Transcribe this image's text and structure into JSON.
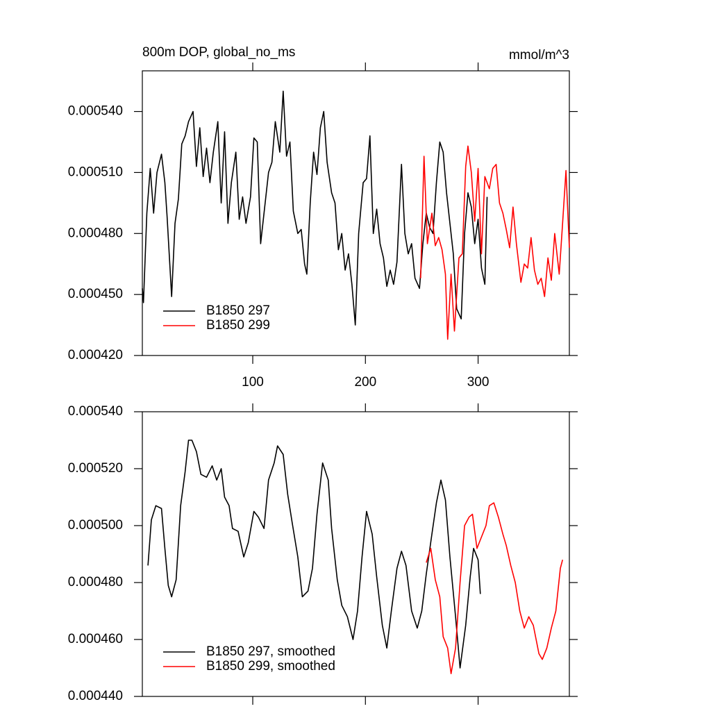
{
  "chart_data": [
    {
      "type": "line",
      "title": "800m DOP, global_no_ms",
      "units_label": "mmol/m^3",
      "xlim": [
        2,
        381
      ],
      "xticks": [
        100,
        200,
        300
      ],
      "xtick_labels": true,
      "ylim": [
        0.00042,
        0.00056
      ],
      "yticks": [
        {
          "value": 0.00042,
          "label": "0.000420"
        },
        {
          "value": 0.00045,
          "label": "0.000450"
        },
        {
          "value": 0.00048,
          "label": "0.000480"
        },
        {
          "value": 0.00051,
          "label": "0.000510"
        },
        {
          "value": 0.00054,
          "label": "0.000540"
        }
      ],
      "legend": "lower left",
      "series": [
        {
          "name": "B1850 297",
          "color": "#000000",
          "x": [
            2,
            3,
            6,
            9,
            12,
            15,
            19,
            22,
            24,
            28,
            31,
            34,
            37,
            40,
            43,
            47,
            50,
            53,
            56,
            59,
            62,
            65,
            69,
            72,
            75,
            78,
            81,
            85,
            88,
            91,
            94,
            98,
            101,
            104,
            107,
            110,
            114,
            117,
            120,
            124,
            127,
            130,
            133,
            136,
            140,
            143,
            146,
            148,
            151,
            154,
            157,
            160,
            163,
            166,
            170,
            173,
            176,
            179,
            182,
            185,
            188,
            191,
            194,
            198,
            201,
            204,
            207,
            210,
            213,
            216,
            219,
            222,
            225,
            228,
            232,
            235,
            238,
            241,
            244,
            248,
            251,
            254,
            257,
            260,
            263,
            266,
            269,
            272,
            275,
            278,
            281,
            285,
            288,
            291,
            294,
            297,
            300,
            303,
            306,
            308
          ],
          "values": [
            0.000453,
            0.000446,
            0.00049,
            0.000512,
            0.00049,
            0.00051,
            0.000519,
            0.000505,
            0.000488,
            0.000449,
            0.000485,
            0.000497,
            0.000524,
            0.000528,
            0.000535,
            0.00054,
            0.000513,
            0.000532,
            0.000508,
            0.000522,
            0.000505,
            0.00052,
            0.000535,
            0.000495,
            0.00053,
            0.000485,
            0.000505,
            0.00052,
            0.000487,
            0.000498,
            0.000485,
            0.000498,
            0.000527,
            0.000525,
            0.000475,
            0.00049,
            0.00051,
            0.000515,
            0.000535,
            0.00052,
            0.00055,
            0.000518,
            0.000525,
            0.000491,
            0.00048,
            0.000482,
            0.000465,
            0.00046,
            0.000495,
            0.00052,
            0.000509,
            0.000532,
            0.00054,
            0.000515,
            0.0005,
            0.000495,
            0.000472,
            0.00048,
            0.000462,
            0.00047,
            0.000455,
            0.000435,
            0.00048,
            0.000505,
            0.000507,
            0.000528,
            0.00048,
            0.000492,
            0.000475,
            0.000468,
            0.000454,
            0.000462,
            0.000455,
            0.000466,
            0.000514,
            0.00048,
            0.00047,
            0.000475,
            0.000458,
            0.000453,
            0.000475,
            0.00049,
            0.000483,
            0.00048,
            0.000505,
            0.000525,
            0.00052,
            0.0005,
            0.000485,
            0.00047,
            0.000443,
            0.000438,
            0.00048,
            0.0005,
            0.000493,
            0.000475,
            0.000487,
            0.000463,
            0.000455,
            0.000498
          ]
        },
        {
          "name": "B1850 299",
          "color": "#ff0000",
          "x": [
            249,
            252,
            255,
            259,
            262,
            265,
            268,
            271,
            273,
            276,
            279,
            283,
            286,
            289,
            291,
            294,
            297,
            300,
            303,
            306,
            310,
            313,
            316,
            319,
            322,
            325,
            328,
            331,
            334,
            338,
            341,
            344,
            347,
            350,
            353,
            356,
            359,
            362,
            365,
            368,
            372,
            375,
            378,
            381
          ],
          "values": [
            0.000458,
            0.000518,
            0.000475,
            0.00049,
            0.000474,
            0.000478,
            0.000472,
            0.00046,
            0.000428,
            0.00046,
            0.000432,
            0.000468,
            0.00047,
            0.000513,
            0.000523,
            0.00051,
            0.000486,
            0.000512,
            0.00047,
            0.000508,
            0.000502,
            0.000512,
            0.000514,
            0.000495,
            0.00049,
            0.000482,
            0.000473,
            0.000493,
            0.000475,
            0.000456,
            0.000465,
            0.000463,
            0.000478,
            0.000462,
            0.000455,
            0.000458,
            0.000449,
            0.000468,
            0.000457,
            0.00048,
            0.00046,
            0.000485,
            0.000511,
            0.000473
          ]
        }
      ]
    },
    {
      "type": "line",
      "xlim": [
        2,
        381
      ],
      "xticks": [
        100,
        200,
        300
      ],
      "xtick_labels": false,
      "ylim": [
        0.00044,
        0.00054
      ],
      "yticks": [
        {
          "value": 0.00044,
          "label": "0.000440"
        },
        {
          "value": 0.00046,
          "label": "0.000460"
        },
        {
          "value": 0.00048,
          "label": "0.000480"
        },
        {
          "value": 0.0005,
          "label": "0.000500"
        },
        {
          "value": 0.00052,
          "label": "0.000520"
        },
        {
          "value": 0.00054,
          "label": "0.000540"
        }
      ],
      "legend": "lower left",
      "series": [
        {
          "name": "B1850 297, smoothed",
          "color": "#000000",
          "x": [
            7,
            10,
            14,
            19,
            22,
            25,
            28,
            32,
            36,
            40,
            43,
            46,
            50,
            54,
            59,
            64,
            68,
            72,
            75,
            79,
            82,
            87,
            92,
            96,
            101,
            105,
            110,
            114,
            119,
            122,
            127,
            131,
            135,
            140,
            144,
            149,
            153,
            157,
            162,
            167,
            170,
            175,
            179,
            184,
            189,
            193,
            197,
            201,
            206,
            210,
            215,
            219,
            223,
            228,
            232,
            236,
            241,
            246,
            250,
            254,
            259,
            263,
            267,
            271,
            275,
            280,
            284,
            289,
            293,
            296,
            300,
            302
          ],
          "values": [
            0.000486,
            0.000502,
            0.000507,
            0.000506,
            0.000492,
            0.000479,
            0.000475,
            0.000481,
            0.000507,
            0.000519,
            0.00053,
            0.00053,
            0.000526,
            0.000518,
            0.000517,
            0.000521,
            0.000516,
            0.00052,
            0.00051,
            0.000507,
            0.000499,
            0.000498,
            0.000489,
            0.000494,
            0.000505,
            0.000503,
            0.000499,
            0.000516,
            0.000522,
            0.000528,
            0.000525,
            0.000511,
            0.000501,
            0.000489,
            0.000475,
            0.000477,
            0.000485,
            0.000504,
            0.000522,
            0.000516,
            0.000499,
            0.000481,
            0.000472,
            0.000468,
            0.00046,
            0.00047,
            0.000489,
            0.000505,
            0.000497,
            0.000482,
            0.000465,
            0.000457,
            0.00047,
            0.000485,
            0.000491,
            0.000486,
            0.00047,
            0.000464,
            0.00047,
            0.000483,
            0.000497,
            0.000508,
            0.000516,
            0.000509,
            0.000489,
            0.000468,
            0.00045,
            0.000465,
            0.000482,
            0.000492,
            0.000488,
            0.000476
          ]
        },
        {
          "name": "B1850 299, smoothed",
          "color": "#ff0000",
          "x": [
            254,
            258,
            262,
            266,
            269,
            273,
            276,
            280,
            284,
            288,
            292,
            295,
            299,
            302,
            307,
            310,
            314,
            318,
            322,
            325,
            329,
            333,
            337,
            341,
            345,
            349,
            354,
            357,
            361,
            365,
            369,
            373,
            375
          ],
          "values": [
            0.000487,
            0.000492,
            0.000481,
            0.000475,
            0.000461,
            0.000457,
            0.000448,
            0.000457,
            0.00048,
            0.0005,
            0.000503,
            0.000504,
            0.000492,
            0.000495,
            0.0005,
            0.000507,
            0.000508,
            0.000503,
            0.000497,
            0.000493,
            0.000486,
            0.00048,
            0.00047,
            0.000464,
            0.000468,
            0.000465,
            0.000455,
            0.000453,
            0.000457,
            0.000464,
            0.00047,
            0.000485,
            0.000488
          ]
        }
      ]
    }
  ]
}
